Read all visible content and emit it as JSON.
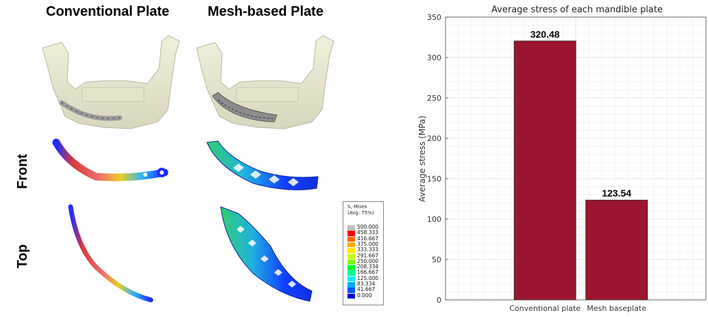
{
  "figure": {
    "col_titles": [
      "Conventional Plate",
      "Mesh-based Plate"
    ],
    "row_labels": [
      "Front",
      "Top"
    ],
    "legend": {
      "title_line1": "S, Mises",
      "title_line2": "(Avg: 75%)",
      "values": [
        "500.000",
        "458.333",
        "416.667",
        "375.000",
        "333.333",
        "291.667",
        "250.000",
        "208.334",
        "166.667",
        "125.000",
        "83.334",
        "41.667",
        "0.000"
      ],
      "colors": [
        "#c0c0c0",
        "#ff0000",
        "#ff6a00",
        "#ffb000",
        "#ffe600",
        "#c8ff00",
        "#7aff00",
        "#00ff30",
        "#00ff9a",
        "#00f0ff",
        "#00a8ff",
        "#0055ff",
        "#0000d0"
      ]
    }
  },
  "chart_data": {
    "type": "bar",
    "title": "Average stress of each mandible plate",
    "xlabel": "",
    "ylabel": "Average stress (MPa)",
    "categories": [
      "Conventional plate",
      "Mesh baseplate"
    ],
    "values": [
      320.48,
      123.54
    ],
    "value_labels": [
      "320.48",
      "123.54"
    ],
    "ylim": [
      0,
      350
    ],
    "yticks": [
      0,
      50,
      100,
      150,
      200,
      250,
      300,
      350
    ],
    "grid": true,
    "bar_color": "#9b1530"
  }
}
